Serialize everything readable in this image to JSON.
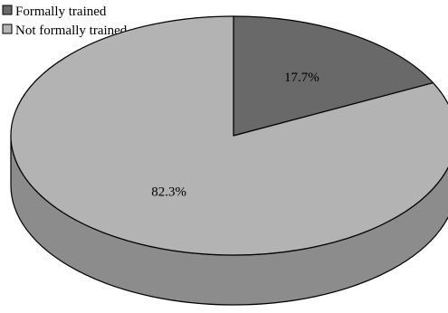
{
  "chart_data": {
    "type": "pie",
    "title": "",
    "categories": [
      "Formally trained",
      "Not formally trained"
    ],
    "values": [
      17.7,
      82.3
    ],
    "value_labels": [
      "17.7%",
      "82.3%"
    ],
    "colors": [
      "#696969",
      "#b3b3b3"
    ],
    "side_color": "#8c8c8c",
    "style": "3d",
    "legend_position": "top-left"
  }
}
